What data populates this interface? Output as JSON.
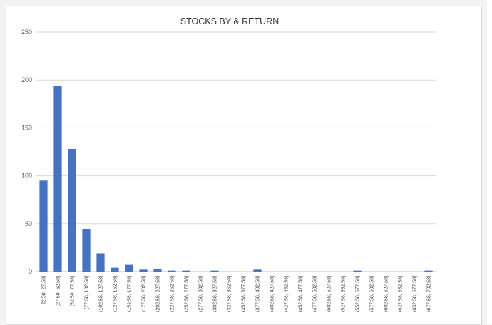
{
  "chart_data": {
    "type": "bar",
    "title": "STOCKS BY & RETURN",
    "xlabel": "",
    "ylabel": "",
    "ylim": [
      0,
      250
    ],
    "yticks": [
      0,
      50,
      100,
      150,
      200,
      250
    ],
    "grid": true,
    "legend": "none",
    "bar_color": "#4472c4",
    "categories": [
      "[2.58, 27.58]",
      "(27.58, 52.58]",
      "(52.58, 77.58]",
      "(77.58, 102.58]",
      "(102.58, 127.58]",
      "(127.58, 152.58]",
      "(152.58, 177.58]",
      "(177.58, 202.58]",
      "(202.58, 227.58]",
      "(227.58, 252.58]",
      "(252.58, 277.58]",
      "(277.58, 302.58]",
      "(302.58, 327.58]",
      "(327.58, 352.58]",
      "(352.58, 377.58]",
      "(377.58, 402.58]",
      "(402.58, 427.58]",
      "(427.58, 452.58]",
      "(452.58, 477.58]",
      "(477.58, 502.58]",
      "(502.58, 527.58]",
      "(527.58, 552.58]",
      "(552.58, 577.58]",
      "(577.58, 602.58]",
      "(602.58, 627.58]",
      "(627.58, 652.58]",
      "(652.58, 677.58]",
      "(677.58, 702.58]"
    ],
    "values": [
      95,
      194,
      128,
      44,
      19,
      4,
      7,
      2,
      3,
      1,
      1,
      0,
      1,
      0,
      0,
      2,
      0,
      0,
      0,
      0,
      0,
      0,
      1,
      0,
      0,
      0,
      0,
      1
    ]
  }
}
